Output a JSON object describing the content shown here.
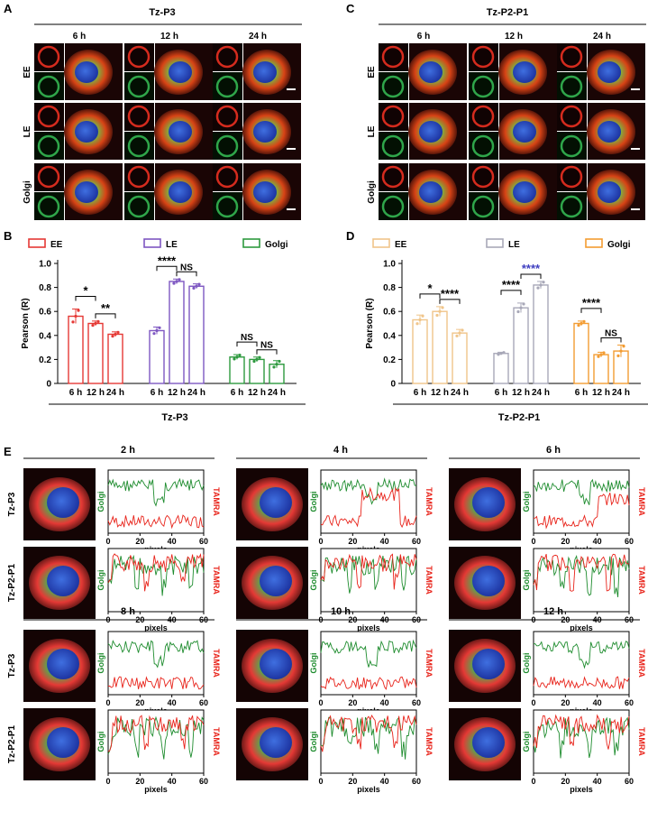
{
  "panels": {
    "A": "A",
    "B": "B",
    "C": "C",
    "D": "D",
    "E": "E"
  },
  "panel_a": {
    "title": "Tz-P3",
    "times": [
      "6 h",
      "12 h",
      "24 h"
    ],
    "rows": [
      "EE",
      "LE",
      "Golgi"
    ]
  },
  "panel_c": {
    "title": "Tz-P2-P1",
    "times": [
      "6 h",
      "12 h",
      "24 h"
    ],
    "rows": [
      "EE",
      "LE",
      "Golgi"
    ]
  },
  "panel_e": {
    "times": [
      "2 h",
      "4 h",
      "6 h",
      "8 h",
      "10 h",
      "12 h"
    ],
    "row_labels": [
      "Tz-P3",
      "Tz-P2-P1",
      "Tz-P3",
      "Tz-P2-P1"
    ],
    "golgi_label": "Golgi",
    "tamra_label": "TAMRA",
    "xlabel": "pixels",
    "xticks": [
      "0",
      "20",
      "40",
      "60"
    ]
  },
  "colors": {
    "ee_b": "#e53935",
    "le_b": "#7e57c2",
    "golgi_b": "#2e9a3f",
    "ee_d": "#f0c58a",
    "le_d": "#a8a8b8",
    "golgi_d": "#f39c32",
    "golgi_line": "#1e8c2e",
    "tamra_line": "#e8231a",
    "sig_blue": "#3e3ec0"
  },
  "chart_data": [
    {
      "type": "bar",
      "panel": "B",
      "ylabel": "Pearson (R)",
      "ylim": [
        0,
        1.0
      ],
      "yticks": [
        "0",
        "0.2",
        "0.4",
        "0.6",
        "0.8",
        "1.0"
      ],
      "categories": [
        "6 h",
        "12 h",
        "24 h"
      ],
      "series": [
        {
          "name": "EE",
          "values": [
            0.56,
            0.5,
            0.41
          ],
          "errors": [
            0.06,
            0.02,
            0.02
          ]
        },
        {
          "name": "LE",
          "values": [
            0.44,
            0.85,
            0.81
          ],
          "errors": [
            0.03,
            0.02,
            0.02
          ]
        },
        {
          "name": "Golgi",
          "values": [
            0.22,
            0.2,
            0.16
          ],
          "errors": [
            0.02,
            0.02,
            0.03
          ]
        }
      ],
      "significance": [
        "*",
        "**",
        "****",
        "NS",
        "NS",
        "NS"
      ],
      "group_label": "Tz-P3"
    },
    {
      "type": "bar",
      "panel": "D",
      "ylabel": "Pearson (R)",
      "ylim": [
        0,
        1.0
      ],
      "yticks": [
        "0",
        "0.2",
        "0.4",
        "0.6",
        "0.8",
        "1.0"
      ],
      "categories": [
        "6 h",
        "12 h",
        "24 h"
      ],
      "series": [
        {
          "name": "EE",
          "values": [
            0.53,
            0.6,
            0.42
          ],
          "errors": [
            0.04,
            0.04,
            0.03
          ]
        },
        {
          "name": "LE",
          "values": [
            0.25,
            0.63,
            0.82
          ],
          "errors": [
            0.01,
            0.04,
            0.03
          ]
        },
        {
          "name": "Golgi",
          "values": [
            0.5,
            0.24,
            0.27
          ],
          "errors": [
            0.02,
            0.02,
            0.05
          ]
        }
      ],
      "significance": [
        "*",
        "****",
        "****",
        "****",
        "****",
        "NS"
      ],
      "group_label": "Tz-P2-P1"
    }
  ]
}
